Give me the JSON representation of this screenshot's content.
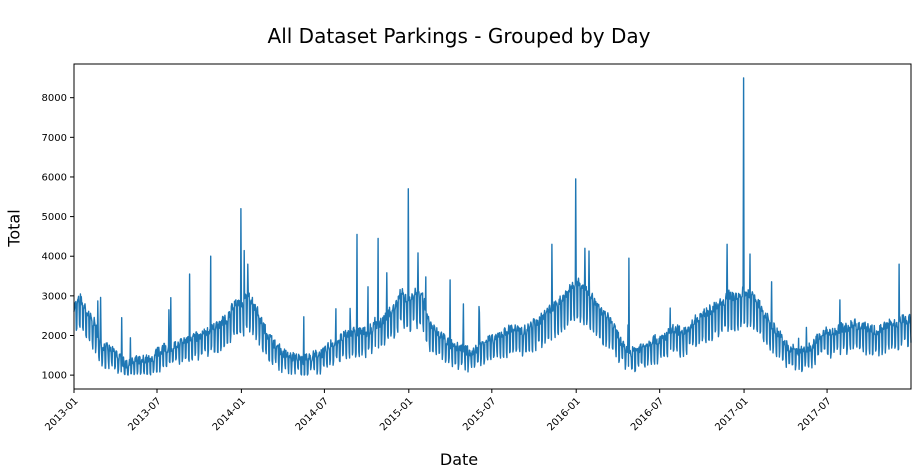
{
  "chart_data": {
    "type": "line",
    "title": "All Dataset Parkings - Grouped by Day",
    "xlabel": "Date",
    "ylabel": "Total",
    "x_range": [
      "2013-01-01",
      "2017-12-31"
    ],
    "ylim": [
      650,
      8850
    ],
    "y_ticks": [
      1000,
      2000,
      3000,
      4000,
      5000,
      6000,
      7000,
      8000
    ],
    "x_ticks": [
      "2013-01",
      "2013-07",
      "2014-01",
      "2014-07",
      "2015-01",
      "2015-07",
      "2016-01",
      "2016-07",
      "2017-01",
      "2017-07"
    ],
    "grid": false,
    "legend": "none",
    "line_color": "#1f77b4",
    "series": [
      {
        "x": [
          "2013-01-01",
          "2013-01-15",
          "2013-02-01",
          "2013-02-15",
          "2013-03-01",
          "2013-03-15",
          "2013-04-01",
          "2013-04-15",
          "2013-05-01",
          "2013-05-15",
          "2013-06-01",
          "2013-06-15",
          "2013-07-01",
          "2013-07-15",
          "2013-08-01",
          "2013-08-15",
          "2013-09-01",
          "2013-09-15",
          "2013-10-01",
          "2013-10-15",
          "2013-11-01",
          "2013-11-15",
          "2013-12-01",
          "2013-12-15",
          "2014-01-01",
          "2014-01-15",
          "2014-02-01",
          "2014-02-15",
          "2014-03-01",
          "2014-03-15",
          "2014-04-01",
          "2014-04-15",
          "2014-05-01",
          "2014-05-15",
          "2014-06-01",
          "2014-06-15",
          "2014-07-01",
          "2014-07-15",
          "2014-08-01",
          "2014-08-15",
          "2014-09-01",
          "2014-09-15",
          "2014-10-01",
          "2014-10-15",
          "2014-11-01",
          "2014-11-15",
          "2014-12-01",
          "2014-12-15",
          "2015-01-01",
          "2015-01-15",
          "2015-02-01",
          "2015-02-15",
          "2015-03-01",
          "2015-03-15",
          "2015-04-01",
          "2015-04-15",
          "2015-05-01",
          "2015-05-15",
          "2015-06-01",
          "2015-06-15",
          "2015-07-01",
          "2015-07-15",
          "2015-08-01",
          "2015-08-15",
          "2015-09-01",
          "2015-09-15",
          "2015-10-01",
          "2015-10-15",
          "2015-11-01",
          "2015-11-15",
          "2015-12-01",
          "2015-12-15",
          "2016-01-01",
          "2016-01-15",
          "2016-02-01",
          "2016-02-15",
          "2016-03-01",
          "2016-03-15",
          "2016-04-01",
          "2016-04-15",
          "2016-05-01",
          "2016-05-15",
          "2016-06-01",
          "2016-06-15",
          "2016-07-01",
          "2016-07-15",
          "2016-08-01",
          "2016-08-15",
          "2016-09-01",
          "2016-09-15",
          "2016-10-01",
          "2016-10-15",
          "2016-11-01",
          "2016-11-15",
          "2016-12-01",
          "2016-12-15",
          "2017-01-01",
          "2017-01-15",
          "2017-02-01",
          "2017-02-15",
          "2017-03-01",
          "2017-03-15",
          "2017-04-01",
          "2017-04-15",
          "2017-05-01",
          "2017-05-15",
          "2017-06-01",
          "2017-06-15",
          "2017-07-01",
          "2017-07-15",
          "2017-08-01",
          "2017-08-15",
          "2017-09-01",
          "2017-09-15",
          "2017-10-01",
          "2017-10-15",
          "2017-11-01",
          "2017-11-15",
          "2017-12-01",
          "2017-12-15",
          "2017-12-31"
        ],
        "values": [
          2600,
          2800,
          2400,
          2200,
          1700,
          1600,
          1500,
          1300,
          1200,
          1300,
          1350,
          1300,
          1500,
          1600,
          1600,
          1700,
          1800,
          1900,
          1850,
          2000,
          2100,
          2200,
          2300,
          2700,
          2600,
          2900,
          2600,
          2200,
          1900,
          1700,
          1500,
          1400,
          1400,
          1300,
          1400,
          1450,
          1500,
          1700,
          1800,
          1900,
          2000,
          2000,
          2000,
          2100,
          2200,
          2400,
          2600,
          3000,
          2700,
          3000,
          2800,
          2200,
          2000,
          1900,
          1700,
          1650,
          1600,
          1500,
          1600,
          1800,
          1800,
          1900,
          2000,
          2100,
          2000,
          2050,
          2200,
          2300,
          2500,
          2600,
          2800,
          3000,
          3200,
          3100,
          2900,
          2600,
          2400,
          2300,
          1900,
          1600,
          1500,
          1600,
          1700,
          1800,
          1800,
          1900,
          2100,
          2000,
          2100,
          2300,
          2400,
          2500,
          2600,
          2700,
          2900,
          2800,
          3000,
          2900,
          2700,
          2400,
          2200,
          2000,
          1700,
          1600,
          1500,
          1600,
          1700,
          1900,
          2000,
          2000,
          2100,
          2100,
          2200,
          2100,
          2100,
          2000,
          2100,
          2200,
          2200,
          2300,
          2300
        ],
        "spikes": [
          {
            "x": "2013-04-15",
            "value": 2450
          },
          {
            "x": "2013-09-10",
            "value": 3550
          },
          {
            "x": "2013-10-26",
            "value": 4000
          },
          {
            "x": "2013-12-31",
            "value": 5200
          },
          {
            "x": "2014-01-15",
            "value": 3800
          },
          {
            "x": "2014-09-10",
            "value": 4550
          },
          {
            "x": "2014-10-26",
            "value": 4450
          },
          {
            "x": "2014-12-31",
            "value": 5700
          },
          {
            "x": "2015-04-01",
            "value": 3400
          },
          {
            "x": "2015-11-09",
            "value": 4300
          },
          {
            "x": "2015-12-31",
            "value": 5950
          },
          {
            "x": "2016-01-20",
            "value": 4200
          },
          {
            "x": "2016-04-25",
            "value": 3950
          },
          {
            "x": "2016-11-25",
            "value": 4300
          },
          {
            "x": "2016-12-31",
            "value": 8500
          },
          {
            "x": "2017-12-05",
            "value": 3800
          }
        ]
      }
    ]
  }
}
